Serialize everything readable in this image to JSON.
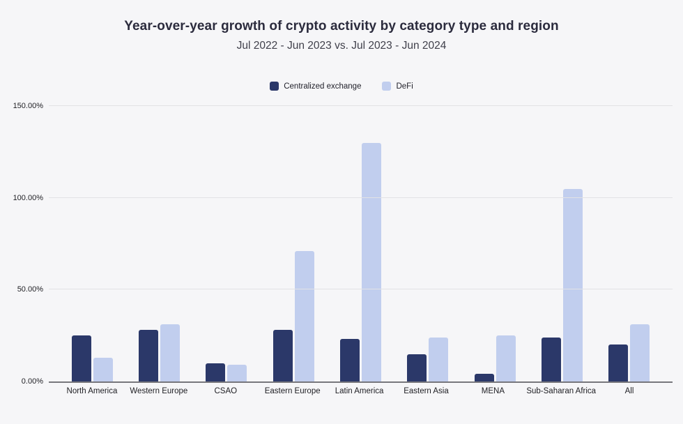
{
  "header": {
    "title": "Year-over-year growth of crypto activity by category type and region",
    "subtitle": "Jul 2022 - Jun 2023 vs. Jul 2023 - Jun 2024"
  },
  "colors": {
    "centralized_exchange": "#2b3869",
    "defi": "#c1ceee",
    "background": "#f6f6f8",
    "gridline": "#e2e2e5",
    "axis_line": "#77777c"
  },
  "chart_data": {
    "type": "bar",
    "title": "Year-over-year growth of crypto activity by category type and region",
    "subtitle": "Jul 2022 - Jun 2023 vs. Jul 2023 - Jun 2024",
    "categories": [
      "North America",
      "Western Europe",
      "CSAO",
      "Eastern Europe",
      "Latin America",
      "Eastern Asia",
      "MENA",
      "Sub-Saharan Africa",
      "All"
    ],
    "series": [
      {
        "name": "Centralized exchange",
        "color": "#2b3869",
        "values": [
          25,
          28,
          10,
          28,
          23,
          15,
          4,
          24,
          20
        ]
      },
      {
        "name": "DeFi",
        "color": "#c1ceee",
        "values": [
          13,
          31,
          9,
          71,
          130,
          24,
          25,
          105,
          31
        ]
      }
    ],
    "xlabel": "",
    "ylabel": "",
    "ylim": [
      0,
      150
    ],
    "y_ticks": [
      {
        "value": 0,
        "label": "0.00%"
      },
      {
        "value": 50,
        "label": "50.00%"
      },
      {
        "value": 100,
        "label": "100.00%"
      },
      {
        "value": 150,
        "label": "150.00%"
      }
    ],
    "grid": true,
    "legend_position": "top"
  }
}
